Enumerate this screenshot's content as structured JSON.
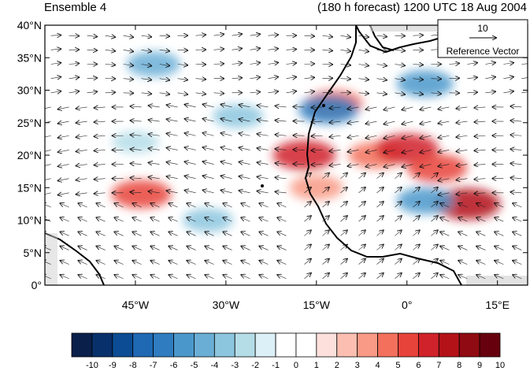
{
  "panel": {
    "left_title": "Ensemble 4",
    "right_title": "(180 h forecast) 1200 UTC 18 Aug 2004"
  },
  "chart_data": {
    "type": "heatmap",
    "description_kind": "filled contour map with wind vectors",
    "x": {
      "range": [
        -60,
        20
      ],
      "ticks": [
        -45,
        -30,
        -15,
        0,
        15
      ],
      "tick_labels": [
        "45°W",
        "30°W",
        "15°W",
        "0°",
        "15°E"
      ]
    },
    "y": {
      "range": [
        0,
        40
      ],
      "ticks": [
        0,
        5,
        10,
        15,
        20,
        25,
        30,
        35,
        40
      ],
      "tick_labels": [
        "0°",
        "5°N",
        "10°N",
        "15°N",
        "20°N",
        "25°N",
        "30°N",
        "35°N",
        "40°N"
      ]
    },
    "colorbar": {
      "labels": [
        "-10",
        "-9",
        "-8",
        "-7",
        "-6",
        "-5",
        "-4",
        "-3",
        "-2",
        "-1",
        "0",
        "1",
        "2",
        "3",
        "4",
        "5",
        "6",
        "7",
        "8",
        "9",
        "10"
      ],
      "colors": [
        "#0a1f4a",
        "#08306b",
        "#0b4c94",
        "#1f69b4",
        "#2f7dc0",
        "#4a98cb",
        "#6aaed6",
        "#8cc6de",
        "#b5dde8",
        "#dcf0f7",
        "#ffffff",
        "#ffffff",
        "#fde0dc",
        "#fbbeb0",
        "#f89a85",
        "#f3705c",
        "#e8433a",
        "#d0222a",
        "#b31218",
        "#8f0a12",
        "#67000d"
      ]
    },
    "reference_vector": {
      "value": "10",
      "label": "Reference Vector"
    },
    "anomaly_centers": [
      {
        "lon": -17,
        "lat": 20,
        "value": 7
      },
      {
        "lon": -5,
        "lat": 20,
        "value": 5
      },
      {
        "lon": 0,
        "lat": 21,
        "value": 7
      },
      {
        "lon": 5,
        "lat": 18,
        "value": 6
      },
      {
        "lon": 10,
        "lat": 12.5,
        "value": 8
      },
      {
        "lon": -44,
        "lat": 14,
        "value": 6
      },
      {
        "lon": -15,
        "lat": 15,
        "value": 4
      },
      {
        "lon": -12,
        "lat": 28,
        "value": 5
      },
      {
        "lon": -13,
        "lat": 27,
        "value": -6
      },
      {
        "lon": 3,
        "lat": 31,
        "value": -5
      },
      {
        "lon": -42,
        "lat": 34,
        "value": -4
      },
      {
        "lon": -28,
        "lat": 26,
        "value": -3
      },
      {
        "lon": 3,
        "lat": 13,
        "value": -5
      },
      {
        "lon": -33,
        "lat": 10,
        "value": -3
      },
      {
        "lon": -45,
        "lat": 22,
        "value": -2
      }
    ]
  }
}
